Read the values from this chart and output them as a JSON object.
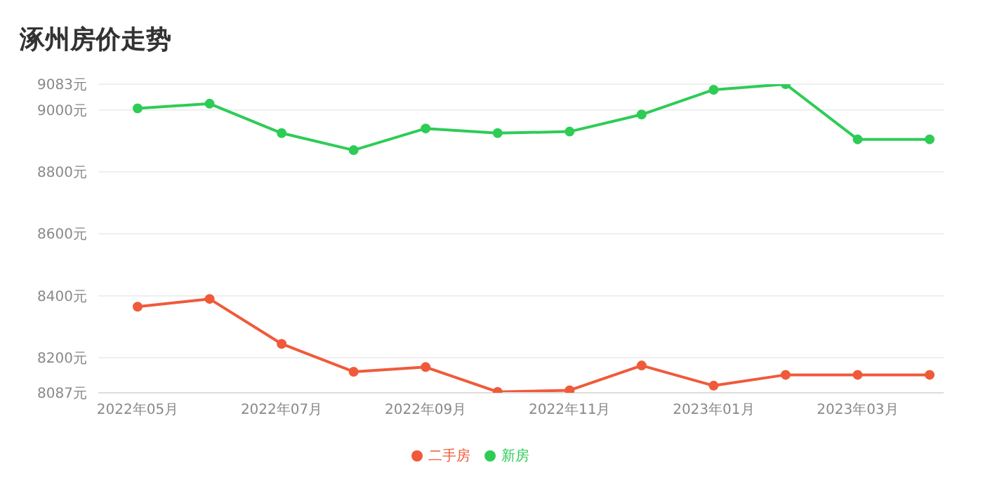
{
  "chart_data": {
    "type": "line",
    "title": "涿州房价走势",
    "categories": [
      "2022年05月",
      null,
      "2022年07月",
      null,
      "2022年09月",
      null,
      "2022年11月",
      null,
      "2023年01月",
      null,
      "2023年03月",
      null
    ],
    "series": [
      {
        "name": "新房",
        "color": "#2ecc55",
        "values": [
          9005,
          9020,
          8925,
          8870,
          8940,
          8925,
          8930,
          8985,
          9065,
          9083,
          8905,
          8905
        ]
      },
      {
        "name": "二手房",
        "color": "#f05a3a",
        "values": [
          8365,
          8390,
          8245,
          8155,
          8170,
          8090,
          8095,
          8175,
          8110,
          8145,
          8145,
          8145
        ]
      }
    ],
    "ylim": [
      8087,
      9083
    ],
    "yticks": [
      {
        "value": 8087,
        "label": "8087元"
      },
      {
        "value": 8200,
        "label": "8200元"
      },
      {
        "value": 8400,
        "label": "8400元"
      },
      {
        "value": 8600,
        "label": "8600元"
      },
      {
        "value": 8800,
        "label": "8800元"
      },
      {
        "value": 9000,
        "label": "9000元"
      },
      {
        "value": 9083,
        "label": "9083元"
      }
    ],
    "grid": "y",
    "legend": "bottom",
    "marker": "circle",
    "line_style": "solid"
  }
}
